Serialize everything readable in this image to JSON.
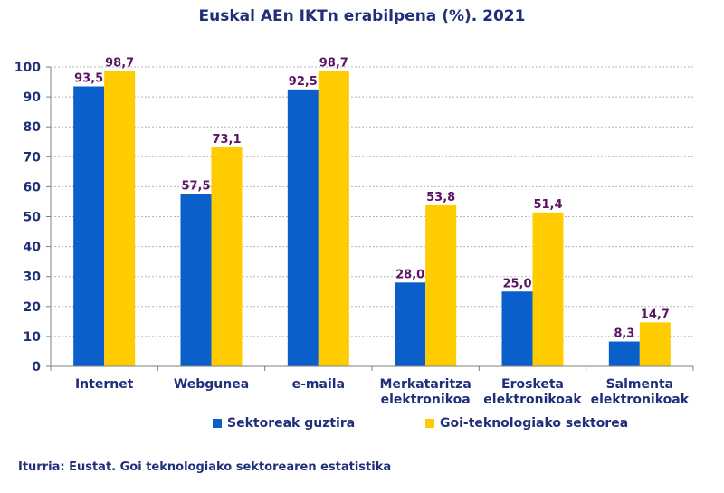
{
  "chart_data": {
    "type": "bar",
    "title": "Euskal AEn  IKTn erabilpena (%). 2021",
    "categories": [
      [
        "Internet"
      ],
      [
        "Webgunea"
      ],
      [
        "e-maila"
      ],
      [
        "Merkataritza",
        "elektronikoa"
      ],
      [
        "Erosketa",
        "elektronikoak"
      ],
      [
        "Salmenta",
        "elektronikoak"
      ]
    ],
    "series": [
      {
        "name": "Sektoreak guztira",
        "color": "#0a5fcb",
        "values": [
          93.5,
          57.5,
          92.5,
          28.0,
          25.0,
          8.3
        ],
        "labels": [
          "93,5",
          "57,5",
          "92,5",
          "28,0",
          "25,0",
          "8,3"
        ]
      },
      {
        "name": "Goi-teknologiako sektorea",
        "color": "#ffcc00",
        "values": [
          98.7,
          73.1,
          98.7,
          53.8,
          51.4,
          14.7
        ],
        "labels": [
          "98,7",
          "73,1",
          "98,7",
          "53,8",
          "51,4",
          "14,7"
        ]
      }
    ],
    "ylim": [
      0,
      100
    ],
    "yticks": [
      0,
      10,
      20,
      30,
      40,
      50,
      60,
      70,
      80,
      90,
      100
    ],
    "grid": true,
    "legend": "bottom",
    "xlabel": "",
    "ylabel": ""
  },
  "colors": {
    "text": "#1f2f7a",
    "data_label": "#5b1463",
    "grid": "#b5b5b5"
  },
  "source": "Iturria: Eustat. Goi teknologiako sektorearen estatistika"
}
